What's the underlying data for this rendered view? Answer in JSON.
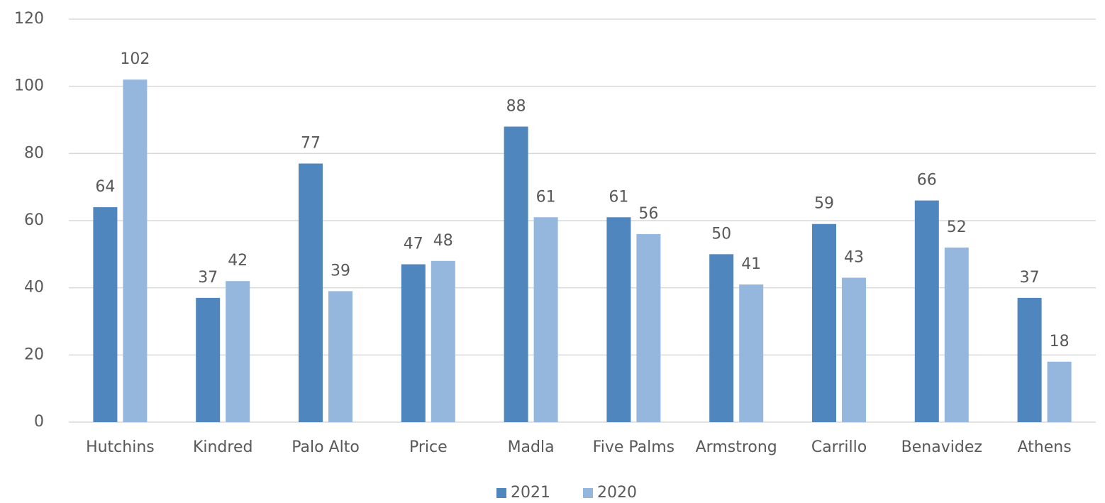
{
  "chart_data": {
    "type": "bar",
    "categories": [
      "Hutchins",
      "Kindred",
      "Palo Alto",
      "Price",
      "Madla",
      "Five Palms",
      "Armstrong",
      "Carrillo",
      "Benavidez",
      "Athens"
    ],
    "series": [
      {
        "name": "2021",
        "color": "#4f86bd",
        "values": [
          64,
          37,
          77,
          47,
          88,
          61,
          50,
          59,
          66,
          37
        ]
      },
      {
        "name": "2020",
        "color": "#95b7de",
        "values": [
          102,
          42,
          39,
          48,
          61,
          56,
          41,
          43,
          52,
          18
        ]
      }
    ],
    "ylim": [
      0,
      120
    ],
    "yticks": [
      0,
      20,
      40,
      60,
      80,
      100,
      120
    ],
    "grid": true,
    "legend": "bottom"
  }
}
